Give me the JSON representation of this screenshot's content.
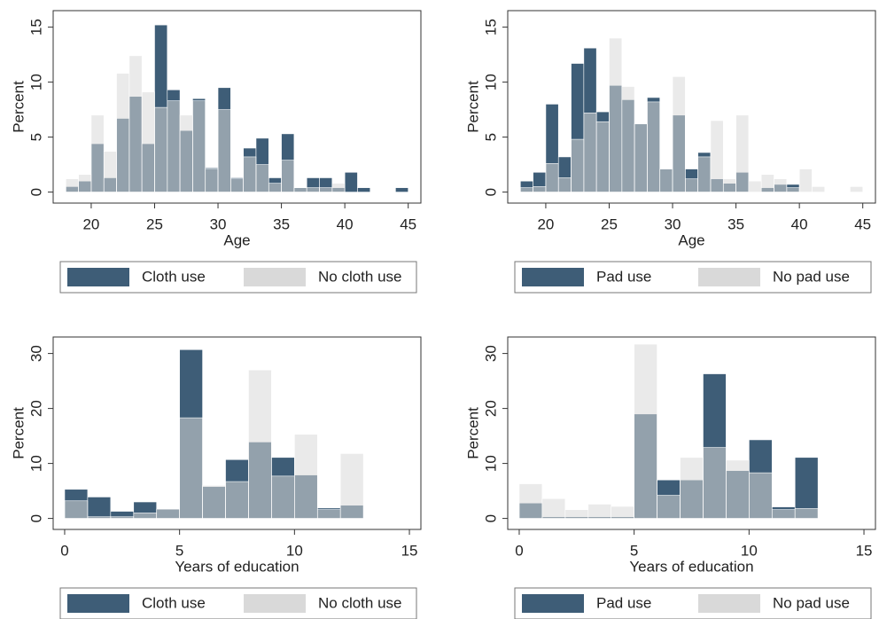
{
  "chart_data": [
    {
      "type": "histogram",
      "xlabel": "Age",
      "ylabel": "Percent",
      "bins": [
        18,
        19,
        20,
        21,
        22,
        23,
        24,
        25,
        26,
        27,
        28,
        29,
        30,
        31,
        32,
        33,
        34,
        35,
        36,
        37,
        38,
        39,
        40,
        41,
        42,
        43,
        44,
        45
      ],
      "series": [
        {
          "name": "Cloth use",
          "color": "#3e5d77",
          "values": [
            0.5,
            1,
            4.4,
            1.3,
            6.7,
            8.7,
            4.4,
            15.2,
            9.3,
            5.6,
            8.5,
            2.2,
            9.5,
            1.3,
            4,
            4.9,
            1.3,
            5.3,
            0.4,
            1.3,
            1.3,
            0.4,
            1.8,
            0.4,
            0,
            0,
            0.4
          ]
        },
        {
          "name": "No cloth use",
          "color": "#d9d9d9",
          "values": [
            1.2,
            1.6,
            7,
            3.7,
            10.8,
            12.4,
            9.1,
            7.7,
            8.3,
            7,
            8.3,
            2.1,
            7.5,
            1.2,
            3.2,
            2.5,
            0.8,
            2.9,
            0.4,
            0.4,
            0.4,
            0.8,
            0,
            0,
            0,
            0,
            0
          ]
        }
      ],
      "xlim": [
        17,
        46
      ],
      "xticks": [
        20,
        25,
        30,
        35,
        40,
        45
      ],
      "ylim": [
        -1,
        16.5
      ],
      "yticks": [
        0,
        5,
        10,
        15
      ]
    },
    {
      "type": "histogram",
      "xlabel": "Age",
      "ylabel": "Percent",
      "bins": [
        18,
        19,
        20,
        21,
        22,
        23,
        24,
        25,
        26,
        27,
        28,
        29,
        30,
        31,
        32,
        33,
        34,
        35,
        36,
        37,
        38,
        39,
        40,
        41,
        42,
        43,
        44,
        45
      ],
      "series": [
        {
          "name": "Pad use",
          "color": "#3e5d77",
          "values": [
            1,
            1.8,
            8,
            3.2,
            11.7,
            13.1,
            7.3,
            9.7,
            8.4,
            6.2,
            8.6,
            2.1,
            7,
            2.1,
            3.6,
            1.2,
            0.8,
            1.8,
            0,
            0.4,
            0.7,
            0.7,
            0,
            0,
            0,
            0,
            0
          ]
        },
        {
          "name": "No pad use",
          "color": "#d9d9d9",
          "values": [
            0.4,
            0.5,
            2.6,
            1.3,
            4.8,
            7.2,
            6.4,
            14,
            9.6,
            6.2,
            8.2,
            2.1,
            10.5,
            1.2,
            3.2,
            6.5,
            1.2,
            7,
            1,
            1.6,
            1.2,
            0.4,
            2.1,
            0.5,
            0,
            0,
            0.5
          ]
        }
      ],
      "xlim": [
        17,
        46
      ],
      "xticks": [
        20,
        25,
        30,
        35,
        40,
        45
      ],
      "ylim": [
        -1,
        16.5
      ],
      "yticks": [
        0,
        5,
        10,
        15
      ]
    },
    {
      "type": "histogram",
      "xlabel": "Years of education",
      "ylabel": "Percent",
      "bins": [
        0,
        1,
        2,
        3,
        4,
        5,
        6,
        7,
        8,
        9,
        10,
        11,
        12,
        13
      ],
      "series": [
        {
          "name": "Cloth use",
          "color": "#3e5d77",
          "values": [
            5.3,
            3.9,
            1.3,
            3,
            1.7,
            30.7,
            5.8,
            10.7,
            13.9,
            11.1,
            7.9,
            1.9,
            2.4
          ]
        },
        {
          "name": "No cloth use",
          "color": "#d9d9d9",
          "values": [
            3.2,
            0.3,
            0.3,
            1,
            1.7,
            18.3,
            6,
            6.7,
            27,
            7.7,
            15.3,
            1.6,
            11.8
          ]
        }
      ],
      "xlim": [
        -0.5,
        15.5
      ],
      "xticks": [
        0,
        5,
        10,
        15
      ],
      "ylim": [
        -2,
        33
      ],
      "yticks": [
        0,
        10,
        20,
        30
      ]
    },
    {
      "type": "histogram",
      "xlabel": "Years of education",
      "ylabel": "Percent",
      "bins": [
        0,
        1,
        2,
        3,
        4,
        5,
        6,
        7,
        8,
        9,
        10,
        11,
        12,
        13
      ],
      "series": [
        {
          "name": "Pad use",
          "color": "#3e5d77",
          "values": [
            2.8,
            0.3,
            0.3,
            0.3,
            0.3,
            19,
            7,
            7,
            26.3,
            8.7,
            14.3,
            2.1,
            11.1
          ]
        },
        {
          "name": "No pad use",
          "color": "#d9d9d9",
          "values": [
            6.3,
            3.6,
            1.6,
            2.6,
            2.2,
            31.7,
            4.2,
            11.1,
            12.9,
            10.6,
            8.3,
            1.6,
            1.8
          ]
        }
      ],
      "xlim": [
        -0.5,
        15.5
      ],
      "xticks": [
        0,
        5,
        10,
        15
      ],
      "ylim": [
        -2,
        33
      ],
      "yticks": [
        0,
        10,
        20,
        30
      ]
    }
  ]
}
